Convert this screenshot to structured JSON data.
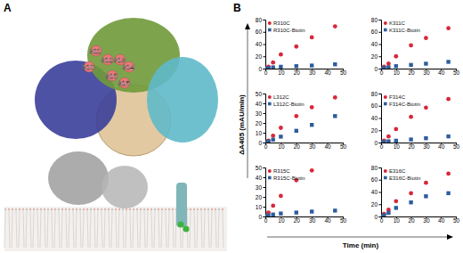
{
  "panel_labels": [
    "A",
    "B"
  ],
  "structure": {
    "residue_labels": [
      "311",
      "312",
      "313",
      "314",
      "310",
      "315",
      "316"
    ]
  },
  "axis_titles": {
    "y": "ΔA405 (mAU/min)",
    "x": "Time (min)"
  },
  "chart_data": [
    {
      "type": "scatter",
      "x": [
        0,
        2,
        5,
        10,
        20,
        30,
        45
      ],
      "xlim": [
        0,
        50
      ],
      "xticks": [
        0,
        10,
        20,
        30,
        40,
        50
      ],
      "ylim": [
        0,
        80
      ],
      "yticks": [
        0,
        20,
        40,
        60,
        80
      ],
      "legend": "top-left",
      "series": [
        {
          "name": "R310C",
          "color": "#d7283b",
          "marker": "circle",
          "values": [
            0,
            3,
            10,
            23,
            36,
            51,
            69
          ]
        },
        {
          "name": "R310C-Biotin",
          "color": "#2c5d9c",
          "marker": "square",
          "values": [
            0,
            1,
            2,
            3,
            4,
            5,
            7
          ]
        }
      ]
    },
    {
      "type": "scatter",
      "x": [
        0,
        2,
        5,
        10,
        20,
        30,
        45
      ],
      "xlim": [
        0,
        50
      ],
      "xticks": [
        0,
        10,
        20,
        30,
        40,
        50
      ],
      "ylim": [
        0,
        80
      ],
      "yticks": [
        0,
        20,
        40,
        60,
        80
      ],
      "legend": "top-left",
      "series": [
        {
          "name": "K311C",
          "color": "#d7283b",
          "marker": "circle",
          "values": [
            0,
            3,
            8,
            20,
            38,
            50,
            66
          ]
        },
        {
          "name": "K311C-Biotin",
          "color": "#2c5d9c",
          "marker": "square",
          "values": [
            0,
            1,
            2,
            4,
            6,
            8,
            11
          ]
        }
      ]
    },
    {
      "type": "scatter",
      "x": [
        0,
        2,
        5,
        10,
        20,
        30,
        45
      ],
      "xlim": [
        0,
        50
      ],
      "xticks": [
        0,
        10,
        20,
        30,
        40,
        50
      ],
      "ylim": [
        0,
        50
      ],
      "yticks": [
        0,
        10,
        20,
        30,
        40,
        50
      ],
      "legend": "top-left",
      "series": [
        {
          "name": "L312C",
          "color": "#d7283b",
          "marker": "circle",
          "values": [
            0,
            2,
            7,
            15,
            27,
            36,
            46
          ]
        },
        {
          "name": "L312C-Biotin",
          "color": "#2c5d9c",
          "marker": "square",
          "values": [
            0,
            1,
            3,
            6,
            12,
            18,
            27
          ]
        }
      ]
    },
    {
      "type": "scatter",
      "x": [
        0,
        2,
        5,
        10,
        20,
        30,
        45
      ],
      "xlim": [
        0,
        50
      ],
      "xticks": [
        0,
        10,
        20,
        30,
        40,
        50
      ],
      "ylim": [
        0,
        80
      ],
      "yticks": [
        0,
        20,
        40,
        60,
        80
      ],
      "legend": "top-left",
      "series": [
        {
          "name": "F314C",
          "color": "#d7283b",
          "marker": "circle",
          "values": [
            0,
            3,
            10,
            22,
            42,
            57,
            71
          ]
        },
        {
          "name": "F314C-Biotin",
          "color": "#2c5d9c",
          "marker": "square",
          "values": [
            0,
            1,
            2,
            3,
            5,
            7,
            10
          ]
        }
      ]
    },
    {
      "type": "scatter",
      "x": [
        0,
        2,
        5,
        10,
        20,
        30,
        45
      ],
      "xlim": [
        0,
        50
      ],
      "xticks": [
        0,
        10,
        20,
        30,
        40,
        50
      ],
      "ylim": [
        0,
        50
      ],
      "yticks": [
        0,
        10,
        20,
        30,
        40,
        50
      ],
      "legend": "top-left",
      "series": [
        {
          "name": "R315C",
          "color": "#d7283b",
          "marker": "circle",
          "values": [
            0,
            4,
            11,
            21,
            37,
            47,
            null
          ]
        },
        {
          "name": "R315C-Biotin",
          "color": "#2c5d9c",
          "marker": "square",
          "values": [
            0,
            1,
            2,
            3,
            4,
            5,
            6
          ]
        }
      ]
    },
    {
      "type": "scatter",
      "x": [
        0,
        2,
        5,
        10,
        20,
        30,
        45
      ],
      "xlim": [
        0,
        50
      ],
      "xticks": [
        0,
        10,
        20,
        30,
        40,
        50
      ],
      "ylim": [
        0,
        80
      ],
      "yticks": [
        0,
        20,
        40,
        60,
        80
      ],
      "legend": "top-left",
      "series": [
        {
          "name": "E316C",
          "color": "#d7283b",
          "marker": "circle",
          "values": [
            0,
            4,
            11,
            25,
            38,
            55,
            70
          ]
        },
        {
          "name": "E316C-Biotin",
          "color": "#2c5d9c",
          "marker": "square",
          "values": [
            0,
            2,
            6,
            14,
            23,
            33,
            38
          ]
        }
      ]
    }
  ]
}
